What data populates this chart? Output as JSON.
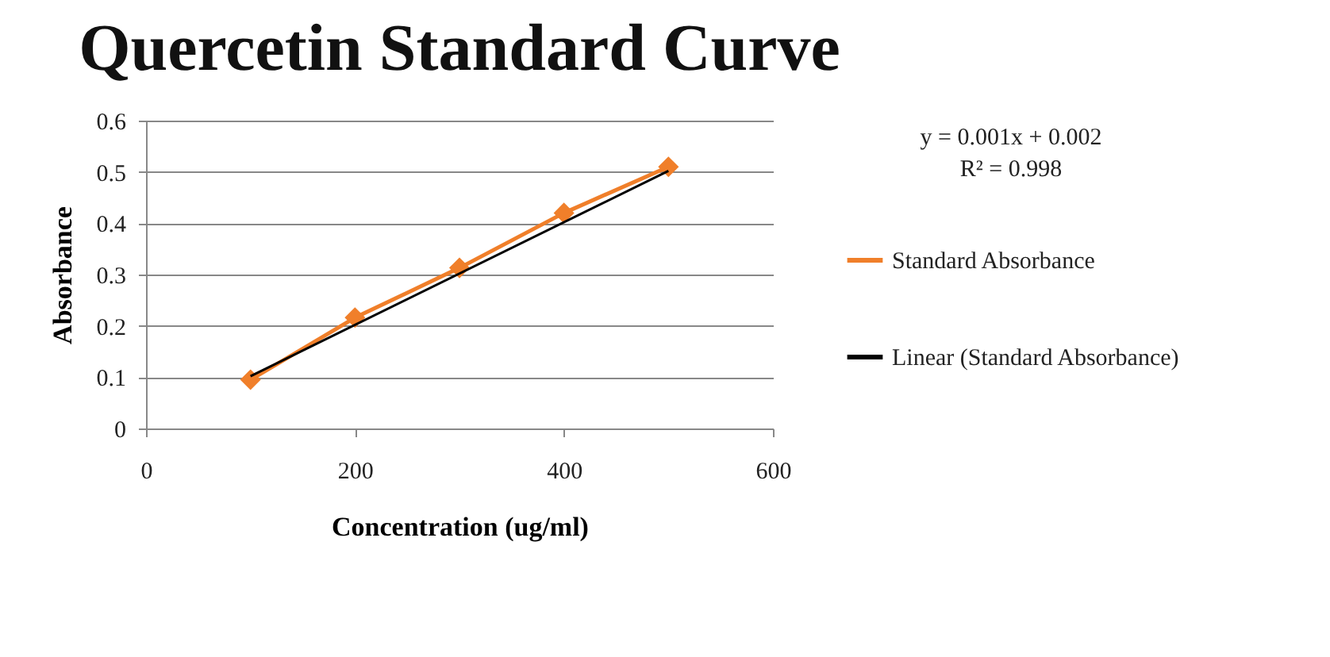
{
  "chart_data": {
    "type": "line",
    "title": "Quercetin Standard Curve",
    "xlabel": "Concentration (ug/ml)",
    "ylabel": "Absorbance",
    "x": [
      100,
      200,
      300,
      400,
      500
    ],
    "series": [
      {
        "name": "Standard Absorbance",
        "color": "#f07f2a",
        "values": [
          0.095,
          0.216,
          0.313,
          0.42,
          0.51
        ],
        "marker": "diamond"
      },
      {
        "name": "Linear (Standard Absorbance)",
        "type": "line",
        "color": "#000000",
        "x": [
          100,
          500
        ],
        "values": [
          0.102,
          0.502
        ],
        "marker": "none"
      }
    ],
    "annotations": [
      "y = 0.001x + 0.002",
      "R² = 0.998"
    ],
    "xlim": [
      0,
      600
    ],
    "xticks": [
      0,
      200,
      400,
      600
    ],
    "ylim": [
      0,
      0.6
    ],
    "yticks": [
      0,
      0.1,
      0.2,
      0.3,
      0.4,
      0.5,
      0.6
    ],
    "grid": "y",
    "legend": "right"
  }
}
